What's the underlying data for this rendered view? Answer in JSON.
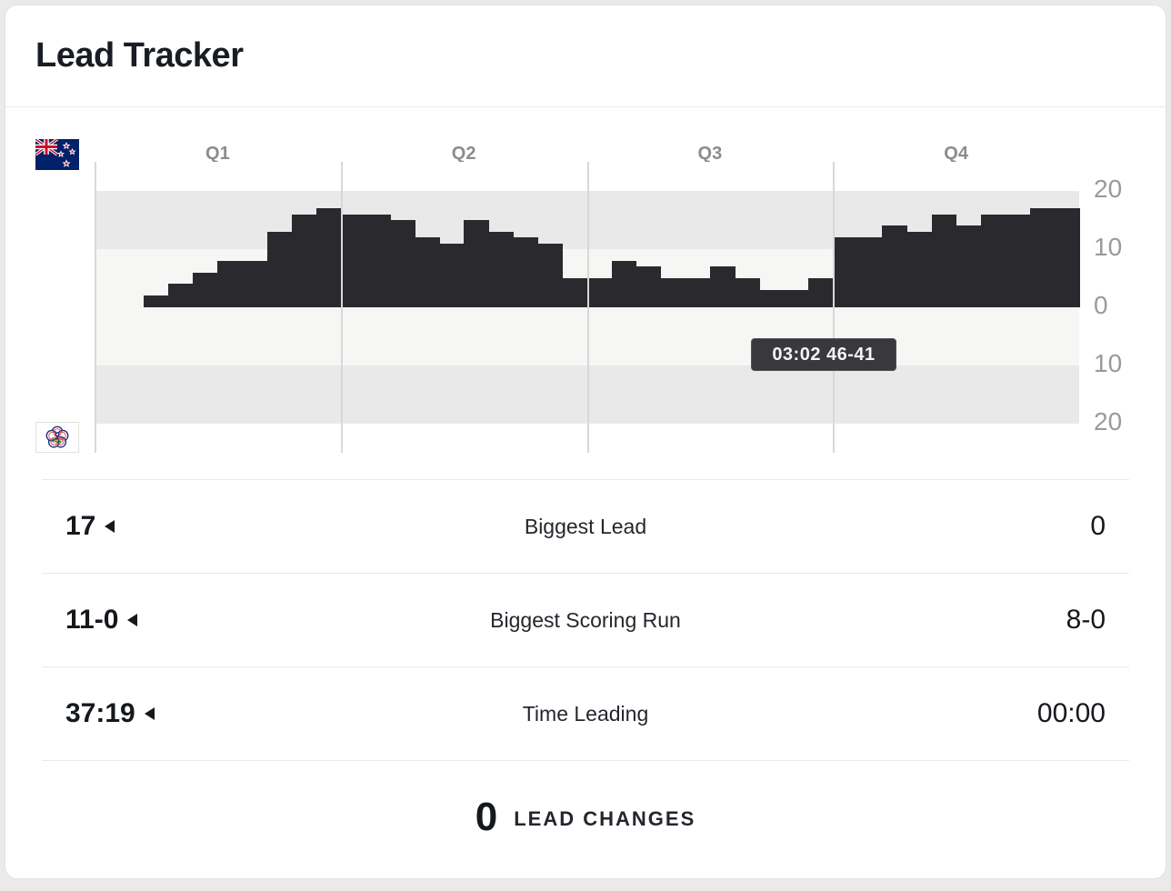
{
  "card": {
    "title": "Lead Tracker"
  },
  "chart_data": {
    "type": "area",
    "title": "Lead Tracker",
    "description": "Step chart of point lead over 40 minutes; New Zealand lead plotted upward, Chinese Taipei lead downward",
    "teams": {
      "top": "New Zealand",
      "bottom": "Chinese Taipei"
    },
    "x_quarter_labels": [
      "Q1",
      "Q2",
      "Q3",
      "Q4"
    ],
    "x_minutes_total": 40,
    "y_tick_labels": [
      "20",
      "10",
      "0",
      "10",
      "20"
    ],
    "y_tick_values": [
      20,
      10,
      0,
      -10,
      -20
    ],
    "ylim": [
      -20,
      20
    ],
    "legend_position": "none",
    "grid": "vertical-quarter-lines",
    "lead_steps": [
      {
        "from": 0,
        "to": 2,
        "lead": 0
      },
      {
        "from": 2,
        "to": 3,
        "lead": 2
      },
      {
        "from": 3,
        "to": 4,
        "lead": 4
      },
      {
        "from": 4,
        "to": 5,
        "lead": 6
      },
      {
        "from": 5,
        "to": 7,
        "lead": 8
      },
      {
        "from": 7,
        "to": 8,
        "lead": 13
      },
      {
        "from": 8,
        "to": 9,
        "lead": 16
      },
      {
        "from": 9,
        "to": 10,
        "lead": 17
      },
      {
        "from": 10,
        "to": 12,
        "lead": 16
      },
      {
        "from": 12,
        "to": 13,
        "lead": 15
      },
      {
        "from": 13,
        "to": 14,
        "lead": 12
      },
      {
        "from": 14,
        "to": 15,
        "lead": 11
      },
      {
        "from": 15,
        "to": 16,
        "lead": 15
      },
      {
        "from": 16,
        "to": 17,
        "lead": 13
      },
      {
        "from": 17,
        "to": 18,
        "lead": 12
      },
      {
        "from": 18,
        "to": 19,
        "lead": 11
      },
      {
        "from": 19,
        "to": 21,
        "lead": 5
      },
      {
        "from": 21,
        "to": 22,
        "lead": 8
      },
      {
        "from": 22,
        "to": 23,
        "lead": 7
      },
      {
        "from": 23,
        "to": 25,
        "lead": 5
      },
      {
        "from": 25,
        "to": 26,
        "lead": 7
      },
      {
        "from": 26,
        "to": 27,
        "lead": 5
      },
      {
        "from": 27,
        "to": 29,
        "lead": 3
      },
      {
        "from": 29,
        "to": 30,
        "lead": 5
      },
      {
        "from": 30,
        "to": 32,
        "lead": 12
      },
      {
        "from": 32,
        "to": 33,
        "lead": 14
      },
      {
        "from": 33,
        "to": 34,
        "lead": 13
      },
      {
        "from": 34,
        "to": 35,
        "lead": 16
      },
      {
        "from": 35,
        "to": 36,
        "lead": 14
      },
      {
        "from": 36,
        "to": 38,
        "lead": 16
      },
      {
        "from": 38,
        "to": 40,
        "lead": 17
      }
    ],
    "tooltip": {
      "text": "03:02 46-41",
      "time": "03:02",
      "score": "46-41"
    }
  },
  "stats": {
    "rows": [
      {
        "home": "17",
        "label": "Biggest Lead",
        "away": "0",
        "leader": "home"
      },
      {
        "home": "11-0",
        "label": "Biggest Scoring Run",
        "away": "8-0",
        "leader": "home"
      },
      {
        "home": "37:19",
        "label": "Time Leading",
        "away": "00:00",
        "leader": "home"
      }
    ],
    "lead_changes": {
      "value": "0",
      "label": "LEAD CHANGES"
    }
  },
  "icons": {
    "home_flag": "new-zealand-flag-icon",
    "away_flag": "chinese-taipei-flag-icon",
    "leader_arrow": "left-triangle-icon"
  },
  "colors": {
    "bar": "#2a2a2e",
    "band_gray": "#e9e9e9",
    "band_light": "#f6f6f5",
    "gridline": "#d8d8d8",
    "tooltip_bg": "#39393d",
    "text_dark": "#15181c",
    "muted_label": "#8c8c8c",
    "axis_label": "#9a9a9a",
    "page_bg": "#ebeae8"
  }
}
